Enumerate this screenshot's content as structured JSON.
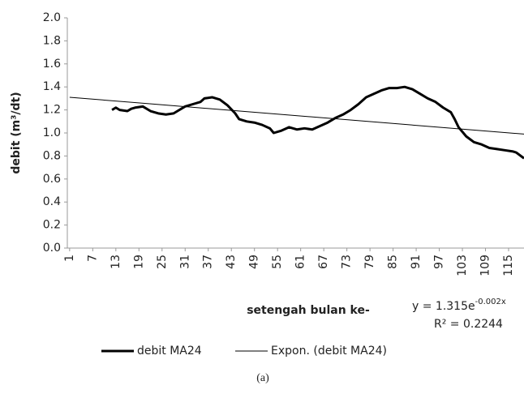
{
  "chart_data": {
    "type": "line",
    "x_label": "setengah bulan ke-",
    "y_label": "debit (m³/dt)",
    "caption": "(a)",
    "equation": {
      "base": "y = 1.315e",
      "exponent": "-0.002x",
      "r2": "R² = 0.2244"
    },
    "xlim": [
      0.4,
      119
    ],
    "xticks": [
      1,
      7,
      13,
      19,
      25,
      31,
      37,
      43,
      49,
      55,
      61,
      67,
      73,
      79,
      85,
      91,
      97,
      103,
      109,
      115
    ],
    "ylim": [
      0,
      2
    ],
    "yticks": [
      {
        "value": 0,
        "label": "0.0"
      },
      {
        "value": 0.2,
        "label": "0.2"
      },
      {
        "value": 0.4,
        "label": "0.4"
      },
      {
        "value": 0.6,
        "label": "0.6"
      },
      {
        "value": 0.8,
        "label": "0.8"
      },
      {
        "value": 1,
        "label": "1.0"
      },
      {
        "value": 1.2,
        "label": "1.2"
      },
      {
        "value": 1.4,
        "label": "1.4"
      },
      {
        "value": 1.6,
        "label": "1.6"
      },
      {
        "value": 1.8,
        "label": "1.8"
      },
      {
        "value": 2,
        "label": "2.0"
      }
    ],
    "series": [
      {
        "name": "debit MA24",
        "color": "#000000",
        "width": 3,
        "x": [
          12,
          13,
          14,
          16,
          17,
          18,
          20,
          22,
          24,
          26,
          28,
          29,
          31,
          33,
          35,
          36,
          38,
          40,
          42,
          44,
          45,
          47,
          49,
          51,
          53,
          54,
          56,
          58,
          60,
          62,
          64,
          66,
          68,
          70,
          72,
          74,
          76,
          78,
          80,
          82,
          84,
          86,
          88,
          90,
          92,
          94,
          96,
          98,
          100,
          101,
          102,
          104,
          106,
          108,
          110,
          112,
          114,
          116,
          117,
          119
        ],
        "values": [
          1.2,
          1.22,
          1.2,
          1.19,
          1.21,
          1.22,
          1.23,
          1.19,
          1.17,
          1.16,
          1.17,
          1.19,
          1.23,
          1.25,
          1.27,
          1.3,
          1.31,
          1.29,
          1.24,
          1.17,
          1.12,
          1.1,
          1.09,
          1.07,
          1.04,
          1.0,
          1.02,
          1.05,
          1.03,
          1.04,
          1.03,
          1.06,
          1.09,
          1.13,
          1.16,
          1.2,
          1.25,
          1.31,
          1.34,
          1.37,
          1.39,
          1.39,
          1.4,
          1.38,
          1.34,
          1.3,
          1.27,
          1.22,
          1.18,
          1.12,
          1.05,
          0.97,
          0.92,
          0.9,
          0.87,
          0.86,
          0.85,
          0.84,
          0.83,
          0.78
        ]
      },
      {
        "name": "Expon. (debit MA24)",
        "color": "#000000",
        "width": 1,
        "x": [
          1,
          119
        ],
        "values": [
          1.31,
          0.99
        ]
      }
    ]
  }
}
